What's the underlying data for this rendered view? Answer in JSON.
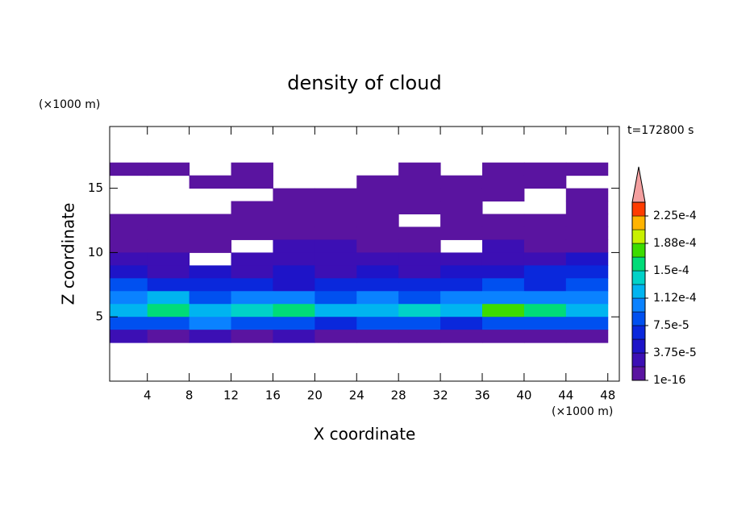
{
  "chart_data": {
    "type": "contour",
    "title": "density of cloud",
    "xlabel": "X coordinate",
    "ylabel": "Z coordinate",
    "xunit": "(×1000 m)",
    "yunit": "(×1000 m)",
    "annotation": "t=172800 s",
    "xlim": [
      0.4,
      49.1
    ],
    "ylim": [
      0,
      19.8
    ],
    "xticks": [
      4,
      8,
      12,
      16,
      20,
      24,
      28,
      32,
      36,
      40,
      44,
      48
    ],
    "yticks": [
      5,
      10,
      15
    ],
    "x": [
      2,
      6,
      10,
      14,
      18,
      22,
      26,
      30,
      34,
      38,
      42,
      46
    ],
    "y": [
      16.5,
      15.5,
      14.5,
      13.5,
      12.5,
      11.5,
      10.5,
      9.5,
      8.5,
      7.5,
      6.5,
      5.5,
      4.5,
      3.5
    ],
    "z": [
      [
        1e-16,
        1e-16,
        null,
        1e-16,
        null,
        null,
        null,
        1e-16,
        null,
        1e-16,
        1e-16,
        1e-16
      ],
      [
        null,
        null,
        1e-16,
        1e-16,
        null,
        null,
        1e-16,
        1e-16,
        1e-16,
        1e-16,
        1e-16,
        null
      ],
      [
        null,
        null,
        null,
        null,
        1e-16,
        1e-16,
        1e-16,
        1e-16,
        1e-16,
        1e-16,
        null,
        1e-16
      ],
      [
        null,
        null,
        null,
        1e-16,
        1e-16,
        1e-16,
        1e-16,
        1e-16,
        1e-16,
        null,
        null,
        1e-16
      ],
      [
        1e-16,
        1e-16,
        1e-16,
        1e-16,
        1e-16,
        1e-16,
        1e-16,
        null,
        1e-16,
        1e-16,
        1e-16,
        1e-16
      ],
      [
        1e-16,
        1e-16,
        1e-16,
        1e-16,
        1e-16,
        1e-16,
        1e-16,
        1e-16,
        1e-16,
        1e-16,
        1e-16,
        1e-16
      ],
      [
        1e-16,
        1e-16,
        1e-16,
        null,
        2e-05,
        2e-05,
        1e-16,
        1e-16,
        null,
        2e-05,
        1e-16,
        1e-16
      ],
      [
        2e-05,
        2e-05,
        null,
        2e-05,
        2e-05,
        2e-05,
        2e-05,
        2e-05,
        2e-05,
        2e-05,
        2e-05,
        4e-05
      ],
      [
        4e-05,
        2e-05,
        4e-05,
        2e-05,
        4e-05,
        2e-05,
        4e-05,
        2e-05,
        4e-05,
        4e-05,
        6e-05,
        6e-05
      ],
      [
        8e-05,
        6e-05,
        7e-05,
        6e-05,
        5e-05,
        6e-05,
        7e-05,
        6e-05,
        6e-05,
        8e-05,
        7e-05,
        8e-05
      ],
      [
        0.0001,
        0.00012,
        9e-05,
        0.0001,
        0.0001,
        9e-05,
        0.0001,
        9e-05,
        0.0001,
        0.00011,
        0.0001,
        0.0001
      ],
      [
        0.00013,
        0.00015,
        0.00012,
        0.00014,
        0.00016,
        0.00013,
        0.00012,
        0.00014,
        0.00013,
        0.00017,
        0.00015,
        0.00013
      ],
      [
        8e-05,
        9e-05,
        0.0001,
        8e-05,
        9e-05,
        7e-05,
        9e-05,
        8e-05,
        7e-05,
        9e-05,
        8e-05,
        9e-05
      ],
      [
        2e-05,
        1e-16,
        2e-05,
        1e-16,
        2e-05,
        1e-16,
        1e-16,
        1e-16,
        1e-16,
        1e-16,
        1e-16,
        1e-16
      ]
    ],
    "colorbar": {
      "levels": [
        1e-16,
        1.875e-05,
        3.75e-05,
        5.625e-05,
        7.5e-05,
        9.375e-05,
        0.0001125,
        0.00013125,
        0.00015,
        0.00016875,
        0.0001875,
        0.00020625,
        0.000225,
        0.00024375
      ],
      "colors": [
        "#5a14a0",
        "#3c0fb4",
        "#1e14c8",
        "#0a28dc",
        "#0050f0",
        "#0a82ff",
        "#00b4f0",
        "#00d2c8",
        "#00dc78",
        "#3cdc00",
        "#c8f000",
        "#ffb400",
        "#ff3c00"
      ],
      "over_color": "#f4a0a0",
      "ticks": [
        {
          "value": 1e-16,
          "label": "1e-16"
        },
        {
          "value": 3.75e-05,
          "label": "3.75e-5"
        },
        {
          "value": 7.5e-05,
          "label": "7.5e-5"
        },
        {
          "value": 0.0001125,
          "label": "1.12e-4"
        },
        {
          "value": 0.00015,
          "label": "1.5e-4"
        },
        {
          "value": 0.0001875,
          "label": "1.88e-4"
        },
        {
          "value": 0.000225,
          "label": "2.25e-4"
        }
      ]
    }
  }
}
